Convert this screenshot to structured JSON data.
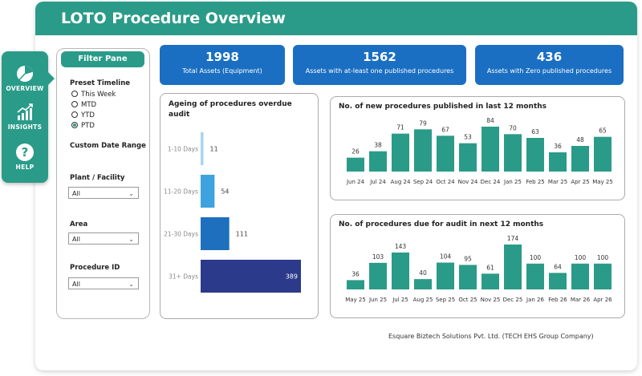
{
  "header": {
    "title": "LOTO Procedure Overview"
  },
  "nav": {
    "items": [
      {
        "label": "OVERVIEW",
        "icon": "pie-chart-icon"
      },
      {
        "label": "INSIGHTS",
        "icon": "growth-chart-icon"
      },
      {
        "label": "HELP",
        "icon": "question-icon"
      }
    ]
  },
  "filter": {
    "title": "Filter Pane",
    "preset_label": "Preset Timeline",
    "options": [
      "This Week",
      "MTD",
      "YTD",
      "PTD"
    ],
    "selected": "PTD",
    "custom_range_label": "Custom Date Range",
    "plant_label": "Plant / Facility",
    "plant_value": "All",
    "area_label": "Area",
    "area_value": "All",
    "procedure_label": "Procedure ID",
    "procedure_value": "All"
  },
  "kpis": [
    {
      "value": "1998",
      "label": "Total Assets (Equipment)"
    },
    {
      "value": "1562",
      "label": "Assets with at-least one published procedures"
    },
    {
      "value": "436",
      "label": "Assets with Zero published procedures"
    }
  ],
  "colors": {
    "accent": "#2a9b88",
    "kpi": "#1b6fc2",
    "bar_teal": "#2a9b88"
  },
  "footer": "Esquare Biztech Solutions Pvt. Ltd. (TECH EHS Group Company)",
  "chart_data": [
    {
      "type": "bar",
      "orientation": "horizontal",
      "title": "Ageing of procedures overdue audit",
      "categories": [
        "1-10 Days",
        "11-20 Days",
        "21-30 Days",
        "31+ Days"
      ],
      "values": [
        11,
        54,
        111,
        389
      ],
      "colors": [
        "#a9d4f0",
        "#3fa2e0",
        "#1e6fbd",
        "#2b3a8a"
      ]
    },
    {
      "type": "bar",
      "title": "No. of new procedures published in last 12 months",
      "categories": [
        "Jun 24",
        "Jul 24",
        "Aug 24",
        "Sep 24",
        "Oct 24",
        "Nov 24",
        "Dec 24",
        "Jan 25",
        "Feb 25",
        "Mar 25",
        "Apr 25",
        "May 25"
      ],
      "values": [
        26,
        38,
        71,
        79,
        67,
        53,
        84,
        70,
        63,
        36,
        48,
        65
      ]
    },
    {
      "type": "bar",
      "title": "No. of procedures due for audit in next 12 months",
      "categories": [
        "May 25",
        "Jun 25",
        "Jul 25",
        "Aug 25",
        "Sep 25",
        "Oct 25",
        "Nov 25",
        "Dec 25",
        "Jan 26",
        "Feb 26",
        "Mar 26",
        "Apr 26"
      ],
      "values": [
        36,
        103,
        143,
        40,
        104,
        95,
        61,
        174,
        100,
        64,
        100,
        100
      ]
    }
  ]
}
